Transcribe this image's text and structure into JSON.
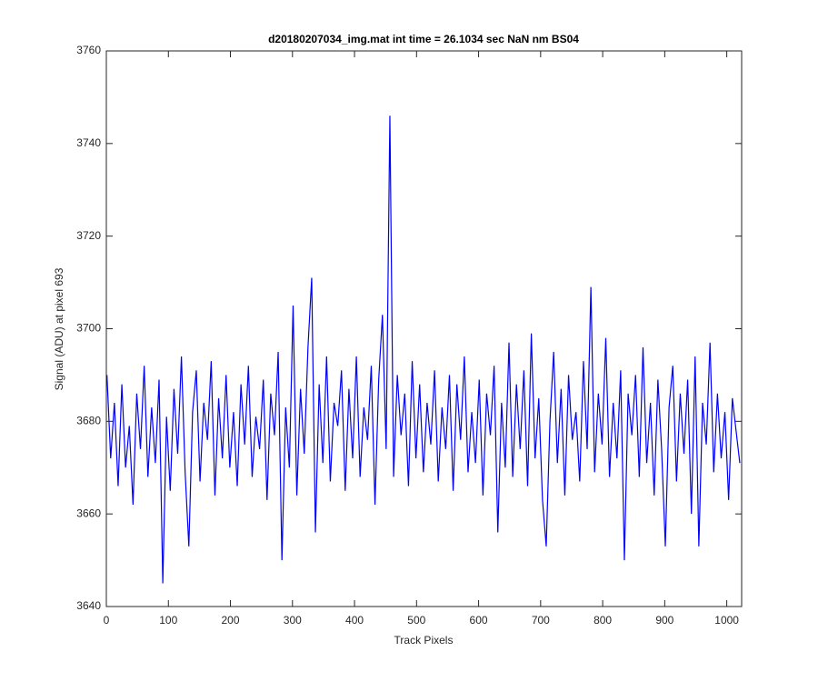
{
  "chart_data": {
    "type": "line",
    "title": "d20180207034_img.mat int time = 26.1034 sec  NaN nm BS04",
    "xlabel": "Track Pixels",
    "ylabel": "Signal (ADU) at pixel 693",
    "color": "#0000ff",
    "xlim": [
      0,
      1024
    ],
    "ylim": [
      3640,
      3760
    ],
    "xticks": [
      0,
      100,
      200,
      300,
      400,
      500,
      600,
      700,
      800,
      900,
      1000
    ],
    "yticks": [
      3640,
      3660,
      3680,
      3700,
      3720,
      3740,
      3760
    ],
    "x": [
      1,
      7,
      13,
      19,
      25,
      31,
      37,
      43,
      49,
      55,
      61,
      67,
      73,
      79,
      85,
      91,
      97,
      103,
      109,
      115,
      121,
      127,
      133,
      139,
      145,
      151,
      157,
      163,
      169,
      175,
      181,
      187,
      193,
      199,
      205,
      211,
      217,
      223,
      229,
      235,
      241,
      247,
      253,
      259,
      265,
      271,
      277,
      283,
      289,
      295,
      301,
      307,
      313,
      319,
      325,
      331,
      337,
      343,
      349,
      355,
      361,
      367,
      373,
      379,
      385,
      391,
      397,
      403,
      409,
      415,
      421,
      427,
      433,
      439,
      445,
      451,
      457,
      463,
      469,
      475,
      481,
      487,
      493,
      499,
      505,
      511,
      517,
      523,
      529,
      535,
      541,
      547,
      553,
      559,
      565,
      571,
      577,
      583,
      589,
      595,
      601,
      607,
      613,
      619,
      625,
      631,
      637,
      643,
      649,
      655,
      661,
      667,
      673,
      679,
      685,
      691,
      697,
      703,
      709,
      715,
      721,
      727,
      733,
      739,
      745,
      751,
      757,
      763,
      769,
      775,
      781,
      787,
      793,
      799,
      805,
      811,
      817,
      823,
      829,
      835,
      841,
      847,
      853,
      859,
      865,
      871,
      877,
      883,
      889,
      895,
      901,
      907,
      913,
      919,
      925,
      931,
      937,
      943,
      949,
      955,
      961,
      967,
      973,
      979,
      985,
      991,
      997,
      1003,
      1009,
      1015,
      1021
    ],
    "values": [
      3690,
      3672,
      3684,
      3666,
      3688,
      3670,
      3679,
      3662,
      3686,
      3674,
      3692,
      3668,
      3683,
      3671,
      3689,
      3645,
      3681,
      3665,
      3687,
      3673,
      3694,
      3669,
      3653,
      3682,
      3691,
      3667,
      3684,
      3676,
      3693,
      3664,
      3685,
      3672,
      3690,
      3670,
      3682,
      3666,
      3688,
      3675,
      3692,
      3668,
      3681,
      3674,
      3689,
      3663,
      3686,
      3677,
      3695,
      3650,
      3683,
      3670,
      3705,
      3664,
      3687,
      3673,
      3696,
      3711,
      3656,
      3688,
      3671,
      3694,
      3667,
      3684,
      3679,
      3691,
      3665,
      3687,
      3672,
      3694,
      3668,
      3683,
      3676,
      3692,
      3662,
      3689,
      3703,
      3674,
      3746,
      3668,
      3690,
      3677,
      3686,
      3666,
      3693,
      3672,
      3688,
      3669,
      3684,
      3675,
      3691,
      3667,
      3683,
      3674,
      3690,
      3665,
      3688,
      3676,
      3694,
      3669,
      3682,
      3671,
      3689,
      3664,
      3686,
      3677,
      3692,
      3656,
      3684,
      3670,
      3697,
      3668,
      3688,
      3674,
      3691,
      3666,
      3699,
      3672,
      3685,
      3663,
      3653,
      3680,
      3695,
      3671,
      3687,
      3664,
      3690,
      3676,
      3682,
      3667,
      3693,
      3674,
      3709,
      3669,
      3686,
      3675,
      3698,
      3668,
      3684,
      3672,
      3691,
      3650,
      3686,
      3677,
      3690,
      3668,
      3696,
      3671,
      3684,
      3664,
      3689,
      3674,
      3653,
      3683,
      3692,
      3667,
      3686,
      3673,
      3689,
      3660,
      3694,
      3653,
      3684,
      3675,
      3697,
      3669,
      3686,
      3672,
      3682,
      3663,
      3685,
      3678,
      3671
    ]
  }
}
